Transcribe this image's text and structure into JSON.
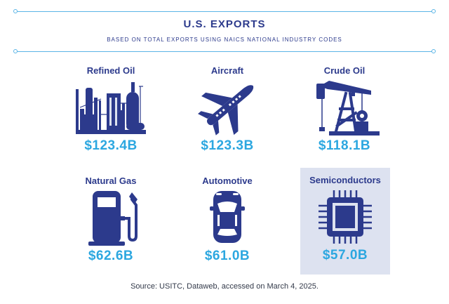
{
  "header": {
    "title": "U.S. EXPORTS",
    "subtitle": "BASED ON TOTAL EXPORTS USING NAICS NATIONAL INDUSTRY CODES"
  },
  "items": [
    {
      "label": "Refined Oil",
      "value": "$123.4B",
      "icon": "refinery-icon"
    },
    {
      "label": "Aircraft",
      "value": "$123.3B",
      "icon": "airplane-icon"
    },
    {
      "label": "Crude Oil",
      "value": "$118.1B",
      "icon": "oil-pump-icon"
    },
    {
      "label": "Natural Gas",
      "value": "$62.6B",
      "icon": "gas-pump-icon"
    },
    {
      "label": "Automotive",
      "value": "$61.0B",
      "icon": "car-icon"
    },
    {
      "label": "Semiconductors",
      "value": "$57.0B",
      "icon": "microchip-icon",
      "highlighted": true
    }
  ],
  "footer": {
    "source": "Source: USITC, Dataweb, accessed on March 4, 2025."
  },
  "colors": {
    "primary": "#2c3a8c",
    "value": "#2ca7e0",
    "highlight_bg": "#dde2f0",
    "rule": "#5bb5e6"
  }
}
